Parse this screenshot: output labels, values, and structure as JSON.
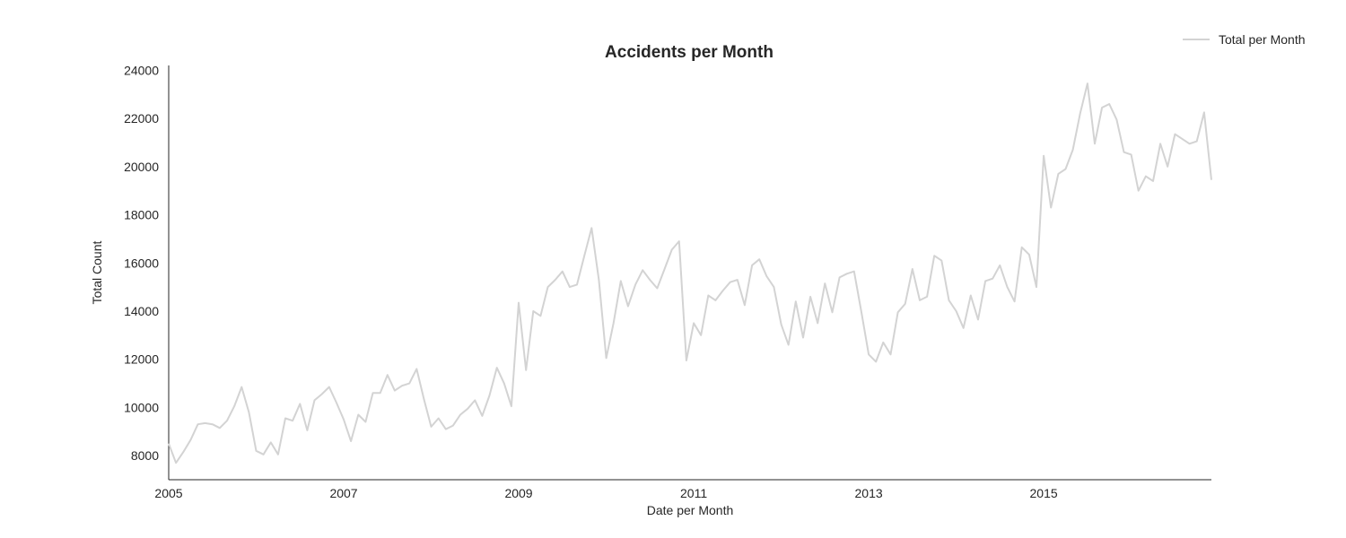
{
  "chart_data": {
    "type": "line",
    "title": "Accidents per Month",
    "xlabel": "Date per Month",
    "ylabel": "Total Count",
    "x_start": "2005-01",
    "xlim": [
      "2005-01",
      "2016-12"
    ],
    "ylim": [
      7000,
      24200
    ],
    "x_ticks": [
      "2005",
      "2007",
      "2009",
      "2011",
      "2013",
      "2015"
    ],
    "y_ticks": [
      8000,
      10000,
      12000,
      14000,
      16000,
      18000,
      20000,
      22000,
      24000
    ],
    "grid": false,
    "legend_position": "top-right",
    "series": [
      {
        "name": "Total per Month",
        "color": "#d3d3d3",
        "values": [
          8500,
          7700,
          8150,
          8650,
          9300,
          9350,
          9300,
          9150,
          9450,
          10050,
          10850,
          9800,
          8200,
          8050,
          8550,
          8050,
          9550,
          9450,
          10150,
          9050,
          10300,
          10550,
          10850,
          10200,
          9500,
          8600,
          9700,
          9400,
          10600,
          10600,
          11350,
          10700,
          10900,
          11000,
          11600,
          10350,
          9200,
          9550,
          9100,
          9250,
          9700,
          9950,
          10300,
          9650,
          10500,
          11650,
          11000,
          10050,
          14350,
          11550,
          14000,
          13800,
          15000,
          15300,
          15650,
          15000,
          15100,
          16300,
          17450,
          15300,
          12050,
          13500,
          15250,
          14200,
          15100,
          15700,
          15300,
          14950,
          15750,
          16550,
          16900,
          11950,
          13500,
          13000,
          14650,
          14450,
          14850,
          15200,
          15300,
          14250,
          15900,
          16150,
          15450,
          15000,
          13450,
          12600,
          14400,
          12900,
          14600,
          13500,
          15150,
          13950,
          15400,
          15550,
          15650,
          13950,
          12200,
          11900,
          12700,
          12200,
          13950,
          14300,
          15750,
          14450,
          14600,
          16300,
          16100,
          14450,
          14000,
          13300,
          14650,
          13650,
          15250,
          15350,
          15900,
          15000,
          14400,
          16650,
          16350,
          15000,
          20450,
          18300,
          19700,
          19900,
          20700,
          22200,
          23450,
          20950,
          22450,
          22600,
          21950,
          20600,
          20500,
          19000,
          19600,
          19400,
          20950,
          20000,
          21350,
          21150,
          20950,
          21050,
          22250,
          19450
        ]
      }
    ]
  }
}
